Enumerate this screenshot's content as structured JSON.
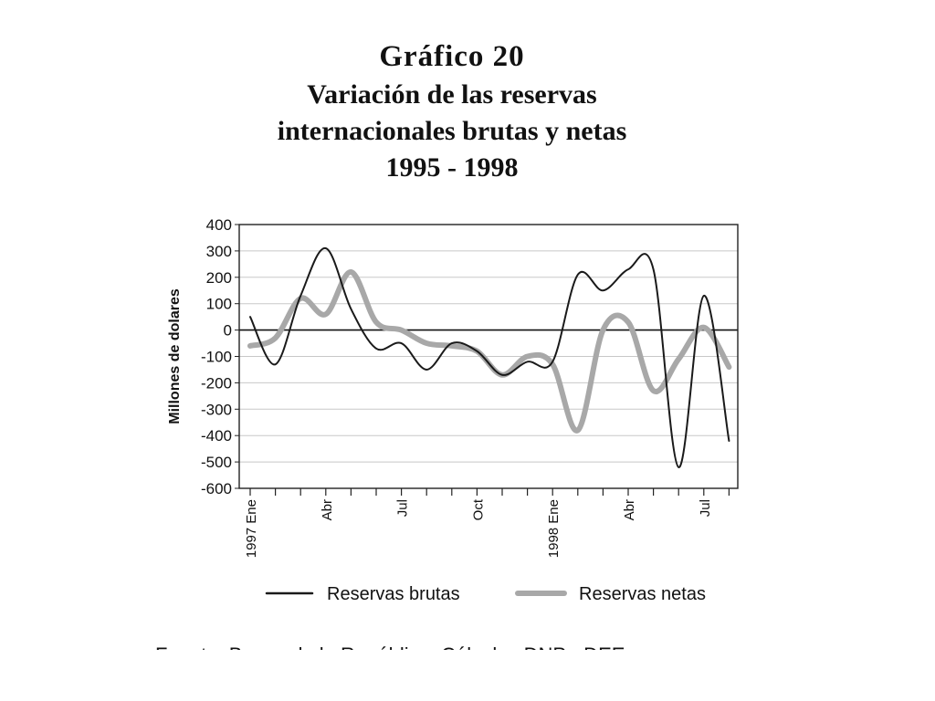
{
  "title": {
    "line1": "Gráfico  20",
    "line2": "Variación de las reservas",
    "line3": "internacionales brutas y netas",
    "line4": "1995 - 1998"
  },
  "source_text": "Fuente: Banco de la República. Cálculos DNP - DEE.",
  "chart_data": {
    "type": "line",
    "ylabel": "Millones de dolares",
    "ylim": [
      -600,
      400
    ],
    "yticks": [
      400,
      300,
      200,
      100,
      0,
      -100,
      -200,
      -300,
      -400,
      -500,
      -600
    ],
    "grid": true,
    "legend_position": "bottom",
    "x_labels": [
      {
        "index": 0,
        "label": "1997 Ene"
      },
      {
        "index": 3,
        "label": "Abr"
      },
      {
        "index": 6,
        "label": "Jul"
      },
      {
        "index": 9,
        "label": "Oct"
      },
      {
        "index": 12,
        "label": "1998 Ene"
      },
      {
        "index": 15,
        "label": "Abr"
      },
      {
        "index": 18,
        "label": "Jul"
      }
    ],
    "n_ticks": 20,
    "series": [
      {
        "name": "Reservas brutas",
        "color": "#1a1a1a",
        "x": [
          0,
          1,
          2,
          3,
          4,
          5,
          6,
          7,
          8,
          9,
          10,
          11,
          12,
          13,
          14,
          15,
          16,
          17,
          18,
          19
        ],
        "values": [
          50,
          -130,
          130,
          310,
          80,
          -70,
          -50,
          -150,
          -50,
          -80,
          -170,
          -120,
          -120,
          210,
          150,
          230,
          230,
          -520,
          130,
          -420
        ]
      },
      {
        "name": "Reservas netas",
        "color": "#a8a8a8",
        "x": [
          0,
          1,
          2,
          3,
          4,
          5,
          6,
          7,
          8,
          9,
          10,
          11,
          12,
          13,
          14,
          15,
          16,
          17,
          18,
          19
        ],
        "values": [
          -60,
          -30,
          120,
          60,
          220,
          30,
          0,
          -50,
          -60,
          -80,
          -170,
          -100,
          -130,
          -380,
          0,
          30,
          -230,
          -110,
          10,
          -140
        ]
      }
    ]
  }
}
